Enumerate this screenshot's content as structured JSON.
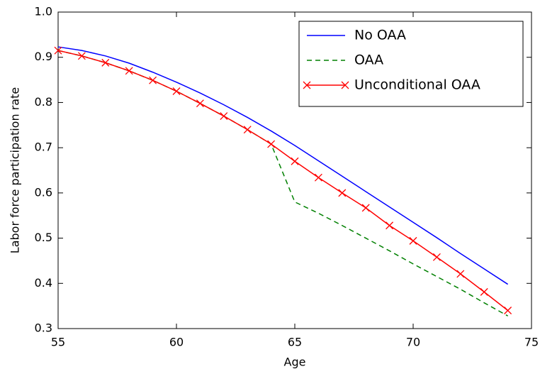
{
  "chart_data": {
    "type": "line",
    "x_label": "Age",
    "y_label": "Labor force participation rate",
    "x": [
      55,
      56,
      57,
      58,
      59,
      60,
      61,
      62,
      63,
      64,
      65,
      66,
      67,
      68,
      69,
      70,
      71,
      72,
      73,
      74
    ],
    "series": [
      {
        "name": "No OAA",
        "color": "#0000ff",
        "dash": "solid",
        "marker": "none",
        "values": [
          0.923,
          0.915,
          0.903,
          0.887,
          0.867,
          0.845,
          0.821,
          0.795,
          0.767,
          0.737,
          0.705,
          0.671,
          0.637,
          0.603,
          0.569,
          0.535,
          0.501,
          0.466,
          0.432,
          0.398
        ]
      },
      {
        "name": "OAA",
        "color": "#008000",
        "dash": "dashed",
        "marker": "none",
        "values": [
          0.915,
          0.903,
          0.888,
          0.87,
          0.849,
          0.825,
          0.798,
          0.77,
          0.74,
          0.708,
          0.58,
          0.555,
          0.528,
          0.5,
          0.472,
          0.443,
          0.415,
          0.387,
          0.357,
          0.328
        ]
      },
      {
        "name": "Unconditional OAA",
        "color": "#ff0000",
        "dash": "solid",
        "marker": "x",
        "values": [
          0.915,
          0.903,
          0.888,
          0.87,
          0.849,
          0.825,
          0.798,
          0.77,
          0.74,
          0.708,
          0.67,
          0.634,
          0.6,
          0.567,
          0.528,
          0.494,
          0.458,
          0.421,
          0.381,
          0.34
        ]
      }
    ],
    "xlim": [
      55,
      75
    ],
    "xticks": [
      55,
      60,
      65,
      70,
      75
    ],
    "ylim": [
      0.3,
      1.0
    ],
    "yticks": [
      {
        "value": 0.3,
        "label": "0.3"
      },
      0.4,
      0.5,
      0.6,
      0.7,
      0.8,
      0.9,
      {
        "value": 1,
        "label": "1.0"
      }
    ],
    "legend": "upper right",
    "grid": false
  }
}
